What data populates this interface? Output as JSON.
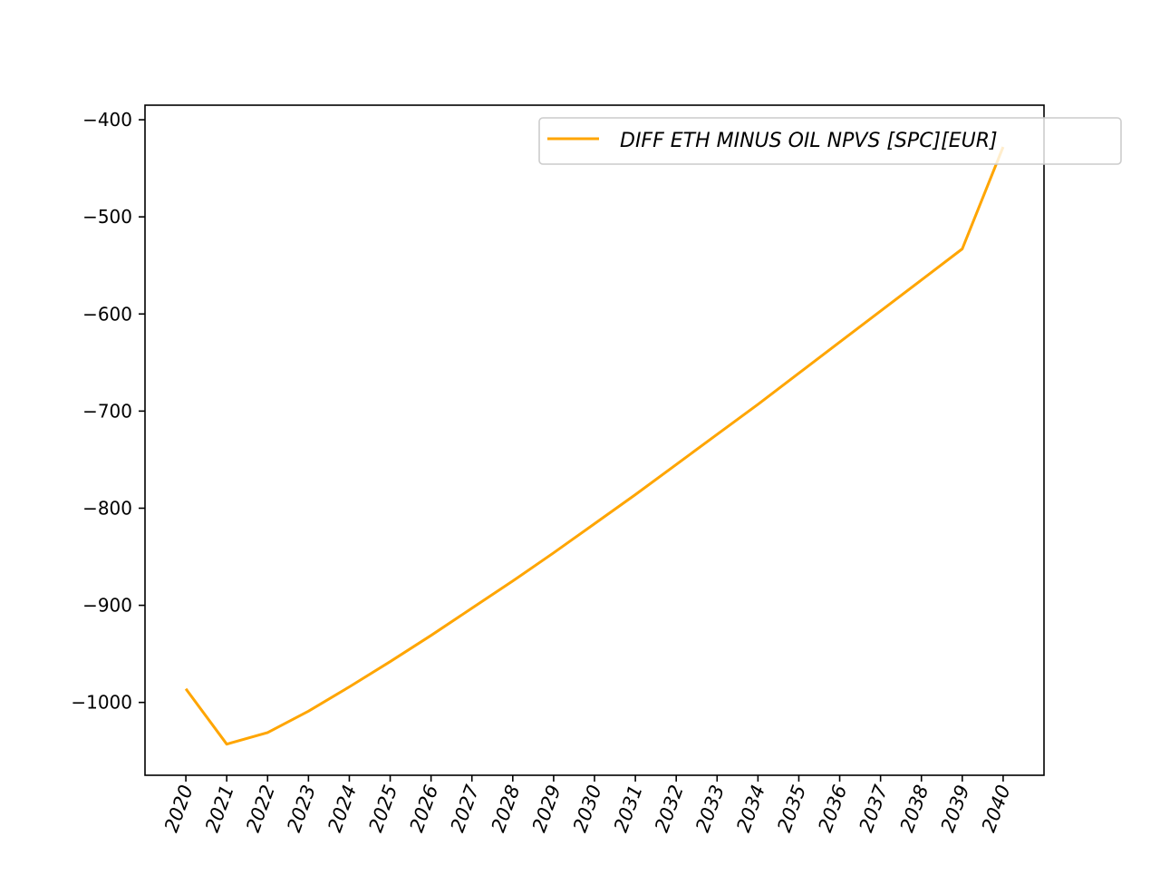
{
  "colors": {
    "series_line": "#FFA500",
    "axes": "#000000",
    "legend_border": "#cccccc",
    "background": "#ffffff"
  },
  "chart_data": {
    "type": "line",
    "title": "",
    "xlabel": "",
    "ylabel": "",
    "x": [
      2020,
      2021,
      2022,
      2023,
      2024,
      2025,
      2026,
      2027,
      2028,
      2029,
      2030,
      2031,
      2032,
      2033,
      2034,
      2035,
      2036,
      2037,
      2038,
      2039,
      2040
    ],
    "x_tick_labels": [
      "2020",
      "2021",
      "2022",
      "2023",
      "2024",
      "2025",
      "2026",
      "2027",
      "2028",
      "2029",
      "2030",
      "2031",
      "2032",
      "2033",
      "2034",
      "2035",
      "2036",
      "2037",
      "2038",
      "2039",
      "2040"
    ],
    "y_ticks": [
      -1000,
      -900,
      -800,
      -700,
      -600,
      -500,
      -400
    ],
    "y_tick_labels": [
      "−1000",
      "−900",
      "−800",
      "−700",
      "−600",
      "−500",
      "−400"
    ],
    "xlim": [
      2019.0,
      2041.0
    ],
    "ylim": [
      -1075,
      -385
    ],
    "grid": false,
    "legend_position": "top-right",
    "series": [
      {
        "name": "DIFF ETH MINUS OIL NPVS [SPC][EUR]",
        "color": "#FFA500",
        "values": [
          -986,
          -1043,
          -1031,
          -1009,
          -984,
          -958,
          -931,
          -903,
          -875,
          -846,
          -816,
          -786,
          -755,
          -724,
          -693,
          -661,
          -629,
          -597,
          -565,
          -533,
          -428
        ]
      }
    ]
  }
}
